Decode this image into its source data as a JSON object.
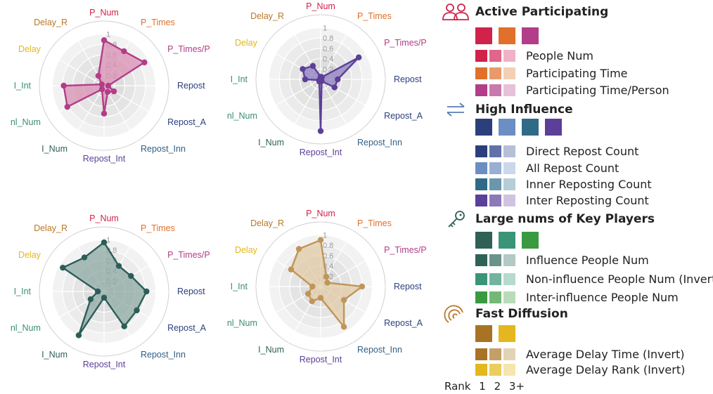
{
  "chart_data": [
    {
      "type": "radar",
      "axes": [
        "P_Num",
        "P_Times",
        "P_Times/P",
        "Repost",
        "Repost_A",
        "Repost_Inn",
        "Repost_Int",
        "I_Num",
        "nl_Num",
        "I_Int",
        "Delay",
        "Delay_R"
      ],
      "axis_colors": [
        "#d1224a",
        "#e0702a",
        "#b23d88",
        "#2b3f7c",
        "#2b3f7c",
        "#2f5f86",
        "#5b3f98",
        "#2f6157",
        "#3a8f6e",
        "#3a8f6e",
        "#e3b71d",
        "#b87828"
      ],
      "ticks": [
        "1",
        "0.8",
        "0.6",
        "0.4",
        "0.2"
      ],
      "rmax": 1,
      "values": [
        0.88,
        0.77,
        0.9,
        0.08,
        0.22,
        0.14,
        0.54,
        0.08,
        0.82,
        0.78,
        0.05,
        0.22
      ],
      "color": "#b23d88",
      "fill": "#d98fb3"
    },
    {
      "type": "radar",
      "axes": [
        "P_Num",
        "P_Times",
        "P_Times/P",
        "Repost",
        "Repost_A",
        "Repost_Inn",
        "Repost_Int",
        "I_Num",
        "nl_Num",
        "I_Int",
        "Delay",
        "Delay_R"
      ],
      "axis_colors": [
        "#d1224a",
        "#e0702a",
        "#b23d88",
        "#2b3f7c",
        "#2b3f7c",
        "#2f5f86",
        "#5b3f98",
        "#2f6157",
        "#3a8f6e",
        "#3a8f6e",
        "#e3b71d",
        "#b87828"
      ],
      "ticks": [
        "1",
        "0.8",
        "0.6",
        "0.4",
        "0.2"
      ],
      "rmax": 1,
      "values": [
        0.05,
        0.05,
        0.85,
        0.33,
        0.31,
        0.04,
        1.0,
        0.05,
        0.03,
        0.3,
        0.4,
        0.3
      ],
      "color": "#5b3f98",
      "fill": "#8e7cc2"
    },
    {
      "type": "radar",
      "axes": [
        "P_Num",
        "P_Times",
        "P_Times/P",
        "Repost",
        "Repost_A",
        "Repost_Inn",
        "Repost_Int",
        "I_Num",
        "nl_Num",
        "I_Int",
        "Delay",
        "Delay_R"
      ],
      "axis_colors": [
        "#d1224a",
        "#e0702a",
        "#b23d88",
        "#2b3f7c",
        "#2b3f7c",
        "#2f5f86",
        "#5b3f98",
        "#2f6157",
        "#3a8f6e",
        "#3a8f6e",
        "#e3b71d",
        "#b87828"
      ],
      "ticks": [
        "1",
        "0.8",
        "0.6",
        "0.4",
        "0.2"
      ],
      "rmax": 1,
      "values": [
        0.95,
        0.57,
        0.6,
        0.82,
        0.73,
        0.78,
        0.12,
        0.98,
        0.3,
        0.12,
        0.92,
        0.76
      ],
      "color": "#2b5e58",
      "fill": "#8ea8a3"
    },
    {
      "type": "radar",
      "axes": [
        "P_Num",
        "P_Times",
        "P_Times/P",
        "Repost",
        "Repost_A",
        "Repost_Inn",
        "Repost_Int",
        "I_Num",
        "nl_Num",
        "I_Int",
        "Delay",
        "Delay_R"
      ],
      "axis_colors": [
        "#d1224a",
        "#e0702a",
        "#b23d88",
        "#2b3f7c",
        "#2b3f7c",
        "#2f5f86",
        "#5b3f98",
        "#2f6157",
        "#3a8f6e",
        "#3a8f6e",
        "#e3b71d",
        "#b87828"
      ],
      "ticks": [
        "1",
        "0.8",
        "0.6",
        "0.4",
        "0.2"
      ],
      "rmax": 1,
      "values": [
        0.9,
        0.22,
        0.15,
        0.8,
        0.52,
        0.9,
        0.22,
        0.33,
        0.28,
        0.16,
        0.66,
        0.84
      ],
      "color": "#c09558",
      "fill": "#e2cba5"
    }
  ],
  "legend": {
    "sections": [
      {
        "title": "Active Participating",
        "icon": "people-icon",
        "icon_color": "#d1224a",
        "main_colors": [
          "#d1224a",
          "#e0702a",
          "#b23d88"
        ],
        "metrics": [
          {
            "label": "People Num",
            "colors": [
              "#d1224a",
              "#e0668a",
              "#f1b2c5"
            ]
          },
          {
            "label": "Participating Time",
            "colors": [
              "#e0702a",
              "#e89a6a",
              "#f3cfb4"
            ]
          },
          {
            "label": "Participating Time/Person",
            "colors": [
              "#b23d88",
              "#c97aac",
              "#e6c1da"
            ]
          }
        ]
      },
      {
        "title": "High Influence",
        "icon": "arrows-exchange-icon",
        "icon_color": "#5b7fb5",
        "main_colors": [
          "#2b3f7c",
          "#6b8fc4",
          "#2f6b87",
          "#5b3f98"
        ],
        "metrics": [
          {
            "label": "Direct Repost Count",
            "colors": [
              "#2b3f7c",
              "#6272a8",
              "#b5bfd6"
            ]
          },
          {
            "label": "All Repost Count",
            "colors": [
              "#6b8fc4",
              "#96afd3",
              "#cad8ea"
            ]
          },
          {
            "label": "Inner Reposting Count",
            "colors": [
              "#2f6b87",
              "#6a97ab",
              "#b6cdd7"
            ]
          },
          {
            "label": "Inter Reposting Count",
            "colors": [
              "#5b3f98",
              "#8c79b8",
              "#cfc4e0"
            ]
          }
        ]
      },
      {
        "title": "Large nums of Key Players",
        "icon": "key-icon",
        "icon_color": "#2f6157",
        "main_colors": [
          "#2f6157",
          "#3a9478",
          "#3a9a40"
        ],
        "metrics": [
          {
            "label": "Influence People Num",
            "colors": [
              "#2f6157",
              "#6a938a",
              "#b3cac4"
            ]
          },
          {
            "label": "Non-influence People Num (Invert)",
            "colors": [
              "#3a9478",
              "#72b49f",
              "#b6dacd"
            ]
          },
          {
            "label": "Inter-influence People Num",
            "colors": [
              "#3a9a40",
              "#74b878",
              "#b8dcba"
            ]
          }
        ]
      },
      {
        "title": "Fast Diffusion",
        "icon": "ripple-icon",
        "icon_color": "#b87828",
        "main_colors": [
          "#a87325",
          "#e3b71d"
        ],
        "metrics": [
          {
            "label": "Average Delay Time (Invert)",
            "colors": [
              "#a87325",
              "#c49f67",
              "#e3d3b5"
            ]
          },
          {
            "label": "Average Delay Rank (Invert)",
            "colors": [
              "#e3b71d",
              "#ebcc5e",
              "#f4e6ad"
            ]
          }
        ]
      }
    ],
    "rank": {
      "label": "Rank",
      "values": [
        "1",
        "2",
        "3+"
      ]
    }
  }
}
